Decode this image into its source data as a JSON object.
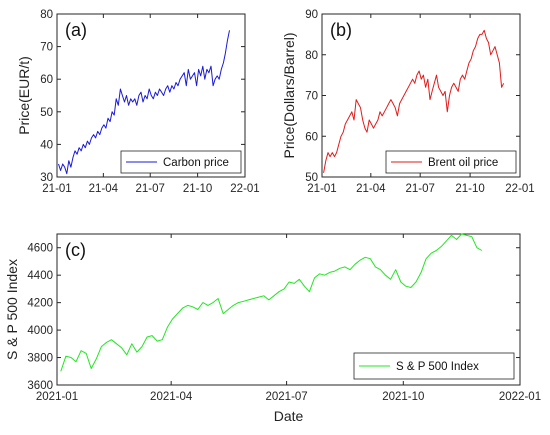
{
  "chart_data": [
    {
      "id": "a",
      "panel_tag": "(a)",
      "type": "line",
      "ylabel": "Price(EUR/t)",
      "xlabel": "",
      "x_ticks": [
        "21-01",
        "21-04",
        "21-07",
        "21-10",
        "22-01"
      ],
      "y_ticks": [
        "30",
        "40",
        "50",
        "60",
        "70",
        "80"
      ],
      "xlim": [
        "2021-01-01",
        "2022-01-01"
      ],
      "ylim": [
        30,
        80
      ],
      "legend_position": "bottom-right",
      "series": [
        {
          "name": "Carbon price",
          "color": "#1a1adb",
          "x": [
            "2021-01-04",
            "2021-01-08",
            "2021-01-12",
            "2021-01-16",
            "2021-01-20",
            "2021-01-24",
            "2021-01-28",
            "2021-02-01",
            "2021-02-05",
            "2021-02-09",
            "2021-02-13",
            "2021-02-17",
            "2021-02-21",
            "2021-02-25",
            "2021-03-01",
            "2021-03-05",
            "2021-03-09",
            "2021-03-13",
            "2021-03-17",
            "2021-03-21",
            "2021-03-25",
            "2021-03-29",
            "2021-04-02",
            "2021-04-06",
            "2021-04-10",
            "2021-04-14",
            "2021-04-18",
            "2021-04-22",
            "2021-04-26",
            "2021-04-30",
            "2021-05-04",
            "2021-05-08",
            "2021-05-12",
            "2021-05-16",
            "2021-05-20",
            "2021-05-24",
            "2021-05-28",
            "2021-06-01",
            "2021-06-05",
            "2021-06-09",
            "2021-06-13",
            "2021-06-17",
            "2021-06-21",
            "2021-06-25",
            "2021-06-29",
            "2021-07-03",
            "2021-07-07",
            "2021-07-11",
            "2021-07-15",
            "2021-07-19",
            "2021-07-23",
            "2021-07-27",
            "2021-07-31",
            "2021-08-04",
            "2021-08-08",
            "2021-08-12",
            "2021-08-16",
            "2021-08-20",
            "2021-08-24",
            "2021-08-28",
            "2021-09-01",
            "2021-09-05",
            "2021-09-09",
            "2021-09-13",
            "2021-09-17",
            "2021-09-21",
            "2021-09-25",
            "2021-09-29",
            "2021-10-03",
            "2021-10-07",
            "2021-10-11",
            "2021-10-15",
            "2021-10-19",
            "2021-10-23",
            "2021-10-27",
            "2021-10-31",
            "2021-11-04",
            "2021-11-08",
            "2021-11-12",
            "2021-11-16",
            "2021-11-20",
            "2021-11-24",
            "2021-11-28",
            "2021-12-02"
          ],
          "values": [
            34,
            32,
            34,
            33,
            31,
            35,
            33,
            36,
            38,
            37,
            39,
            38,
            40,
            39,
            41,
            40,
            42,
            43,
            42,
            44,
            43,
            45,
            46,
            45,
            48,
            47,
            50,
            49,
            54,
            52,
            57,
            55,
            53,
            55,
            52,
            54,
            53,
            54,
            52,
            55,
            56,
            53,
            55,
            54,
            57,
            55,
            54,
            56,
            55,
            57,
            56,
            55,
            57,
            58,
            56,
            58,
            57,
            59,
            58,
            60,
            61,
            62,
            58,
            63,
            60,
            61,
            62,
            58,
            63,
            61,
            64,
            60,
            63,
            62,
            64,
            58,
            60,
            61,
            60,
            63,
            65,
            68,
            72,
            75
          ]
        }
      ]
    },
    {
      "id": "b",
      "panel_tag": "(b)",
      "type": "line",
      "ylabel": "Price(Dollars/Barrel)",
      "xlabel": "",
      "x_ticks": [
        "21-01",
        "21-04",
        "21-07",
        "21-10",
        "22-01"
      ],
      "y_ticks": [
        "50",
        "60",
        "70",
        "80",
        "90"
      ],
      "xlim": [
        "2021-01-01",
        "2022-01-01"
      ],
      "ylim": [
        50,
        90
      ],
      "legend_position": "bottom-right",
      "series": [
        {
          "name": "Brent oil price",
          "color": "#e31a1a",
          "x": [
            "2021-01-04",
            "2021-01-08",
            "2021-01-12",
            "2021-01-16",
            "2021-01-20",
            "2021-01-24",
            "2021-01-28",
            "2021-02-01",
            "2021-02-05",
            "2021-02-09",
            "2021-02-13",
            "2021-02-17",
            "2021-02-21",
            "2021-02-25",
            "2021-03-01",
            "2021-03-05",
            "2021-03-09",
            "2021-03-13",
            "2021-03-17",
            "2021-03-21",
            "2021-03-25",
            "2021-03-29",
            "2021-04-02",
            "2021-04-06",
            "2021-04-10",
            "2021-04-14",
            "2021-04-18",
            "2021-04-22",
            "2021-04-26",
            "2021-04-30",
            "2021-05-04",
            "2021-05-08",
            "2021-05-12",
            "2021-05-16",
            "2021-05-20",
            "2021-05-24",
            "2021-05-28",
            "2021-06-01",
            "2021-06-05",
            "2021-06-09",
            "2021-06-13",
            "2021-06-17",
            "2021-06-21",
            "2021-06-25",
            "2021-06-29",
            "2021-07-03",
            "2021-07-07",
            "2021-07-11",
            "2021-07-15",
            "2021-07-19",
            "2021-07-23",
            "2021-07-27",
            "2021-07-31",
            "2021-08-04",
            "2021-08-08",
            "2021-08-12",
            "2021-08-16",
            "2021-08-20",
            "2021-08-24",
            "2021-08-28",
            "2021-09-01",
            "2021-09-05",
            "2021-09-09",
            "2021-09-13",
            "2021-09-17",
            "2021-09-21",
            "2021-09-25",
            "2021-09-29",
            "2021-10-03",
            "2021-10-07",
            "2021-10-11",
            "2021-10-15",
            "2021-10-19",
            "2021-10-23",
            "2021-10-27",
            "2021-10-31",
            "2021-11-04",
            "2021-11-08",
            "2021-11-12",
            "2021-11-16",
            "2021-11-20",
            "2021-11-24",
            "2021-11-28",
            "2021-12-02"
          ],
          "values": [
            51,
            54,
            56,
            55,
            56,
            55,
            56,
            58,
            60,
            61,
            63,
            64,
            65,
            66,
            64,
            69,
            68,
            67,
            64,
            62,
            61,
            64,
            63,
            62,
            63,
            64,
            66,
            65,
            66,
            67,
            68,
            69,
            68,
            67,
            65,
            68,
            69,
            70,
            71,
            72,
            73,
            74,
            73,
            75,
            76,
            74,
            75,
            72,
            74,
            69,
            71,
            73,
            75,
            72,
            71,
            70,
            71,
            66,
            70,
            72,
            73,
            72,
            71,
            74,
            75,
            74,
            76,
            78,
            79,
            81,
            82,
            84,
            85,
            85,
            86,
            84,
            83,
            80,
            81,
            82,
            80,
            78,
            72,
            73
          ]
        }
      ]
    },
    {
      "id": "c",
      "panel_tag": "(c)",
      "type": "line",
      "ylabel": "S & P 500 Index",
      "xlabel": "Date",
      "x_ticks": [
        "2021-01",
        "2021-04",
        "2021-07",
        "2021-10",
        "2022-01"
      ],
      "y_ticks": [
        "3600",
        "3800",
        "4000",
        "4200",
        "4400",
        "4600"
      ],
      "xlim": [
        "2021-01-01",
        "2022-01-01"
      ],
      "ylim": [
        3600,
        4700
      ],
      "legend_position": "bottom-right",
      "series": [
        {
          "name": "S & P 500 Index",
          "color": "#22e622",
          "x": [
            "2021-01-04",
            "2021-01-08",
            "2021-01-12",
            "2021-01-16",
            "2021-01-20",
            "2021-01-24",
            "2021-01-28",
            "2021-02-01",
            "2021-02-05",
            "2021-02-09",
            "2021-02-13",
            "2021-02-17",
            "2021-02-21",
            "2021-02-25",
            "2021-03-01",
            "2021-03-05",
            "2021-03-09",
            "2021-03-13",
            "2021-03-17",
            "2021-03-21",
            "2021-03-25",
            "2021-03-29",
            "2021-04-02",
            "2021-04-06",
            "2021-04-10",
            "2021-04-14",
            "2021-04-18",
            "2021-04-22",
            "2021-04-26",
            "2021-04-30",
            "2021-05-04",
            "2021-05-08",
            "2021-05-12",
            "2021-05-16",
            "2021-05-20",
            "2021-05-24",
            "2021-05-28",
            "2021-06-01",
            "2021-06-05",
            "2021-06-09",
            "2021-06-13",
            "2021-06-17",
            "2021-06-21",
            "2021-06-25",
            "2021-06-29",
            "2021-07-03",
            "2021-07-07",
            "2021-07-11",
            "2021-07-15",
            "2021-07-19",
            "2021-07-23",
            "2021-07-27",
            "2021-07-31",
            "2021-08-04",
            "2021-08-08",
            "2021-08-12",
            "2021-08-16",
            "2021-08-20",
            "2021-08-24",
            "2021-08-28",
            "2021-09-01",
            "2021-09-05",
            "2021-09-09",
            "2021-09-13",
            "2021-09-17",
            "2021-09-21",
            "2021-09-25",
            "2021-09-29",
            "2021-10-03",
            "2021-10-07",
            "2021-10-11",
            "2021-10-15",
            "2021-10-19",
            "2021-10-23",
            "2021-10-27",
            "2021-10-31",
            "2021-11-04",
            "2021-11-08",
            "2021-11-12",
            "2021-11-16",
            "2021-11-20",
            "2021-11-24",
            "2021-11-28",
            "2021-12-02"
          ],
          "values": [
            3700,
            3810,
            3800,
            3770,
            3850,
            3830,
            3720,
            3790,
            3880,
            3910,
            3930,
            3900,
            3870,
            3820,
            3900,
            3840,
            3880,
            3950,
            3960,
            3920,
            3930,
            4020,
            4080,
            4120,
            4160,
            4180,
            4170,
            4150,
            4200,
            4180,
            4200,
            4230,
            4120,
            4150,
            4180,
            4200,
            4210,
            4220,
            4230,
            4240,
            4250,
            4220,
            4250,
            4280,
            4300,
            4350,
            4340,
            4370,
            4320,
            4280,
            4380,
            4410,
            4400,
            4420,
            4430,
            4450,
            4460,
            4440,
            4480,
            4510,
            4530,
            4520,
            4460,
            4440,
            4400,
            4370,
            4440,
            4350,
            4320,
            4310,
            4350,
            4420,
            4520,
            4560,
            4580,
            4610,
            4650,
            4690,
            4660,
            4700,
            4690,
            4680,
            4600,
            4580
          ]
        }
      ]
    }
  ]
}
